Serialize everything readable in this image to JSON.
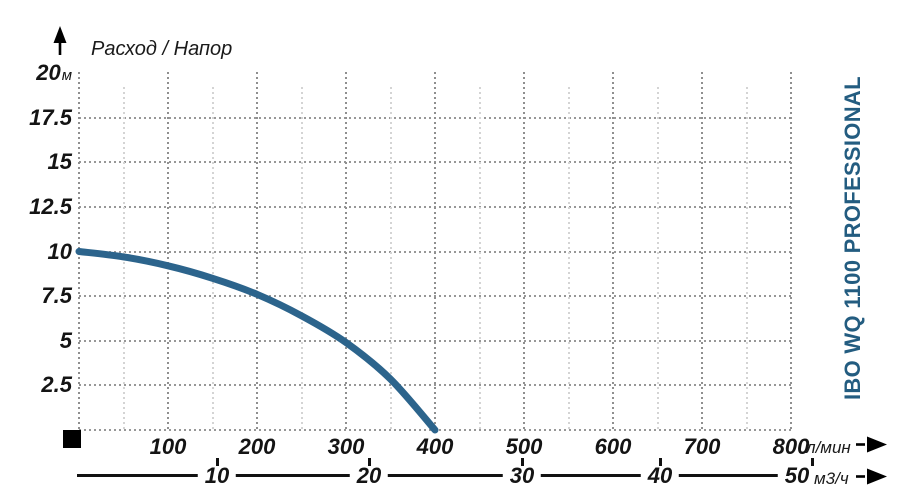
{
  "title": "Расход / Напор",
  "product_label": "IBO WQ 1100 PROFESSIONAL",
  "colors": {
    "curve": "#2c648c",
    "product_text": "#235c80",
    "grid_major": "#8f8f8f",
    "grid_minor": "#d4d4d4",
    "axis_black": "#111111"
  },
  "y_axis": {
    "unit": "м",
    "tick_labels": [
      "20",
      "17.5",
      "15",
      "12.5",
      "10",
      "7.5",
      "5",
      "2.5"
    ],
    "tick_values": [
      20,
      17.5,
      15,
      12.5,
      10,
      7.5,
      5,
      2.5
    ]
  },
  "x_axis_primary": {
    "unit": "л/мин",
    "tick_labels": [
      "100",
      "200",
      "300",
      "400",
      "500",
      "600",
      "700",
      "800"
    ],
    "tick_values": [
      100,
      200,
      300,
      400,
      500,
      600,
      700,
      800
    ]
  },
  "x_axis_secondary": {
    "unit": "м3/ч",
    "tick_labels": [
      "10",
      "20",
      "30",
      "40",
      "50"
    ],
    "tick_values": [
      10,
      20,
      30,
      40,
      50
    ]
  },
  "chart_data": {
    "type": "line",
    "title": "Расход / Напор",
    "xlabel": "Расход (л/мин, м3/ч)",
    "ylabel": "Напор (м)",
    "xlim": [
      0,
      800
    ],
    "ylim": [
      0,
      20
    ],
    "grid": true,
    "legend_position": "right-vertical",
    "series": [
      {
        "name": "IBO WQ 1100 PROFESSIONAL",
        "color": "#2c648c",
        "points_lmin_vs_m": [
          [
            0,
            10.0
          ],
          [
            50,
            9.7
          ],
          [
            100,
            9.2
          ],
          [
            150,
            8.5
          ],
          [
            200,
            7.6
          ],
          [
            250,
            6.4
          ],
          [
            300,
            4.9
          ],
          [
            350,
            2.85
          ],
          [
            400,
            0.0
          ]
        ]
      }
    ]
  }
}
